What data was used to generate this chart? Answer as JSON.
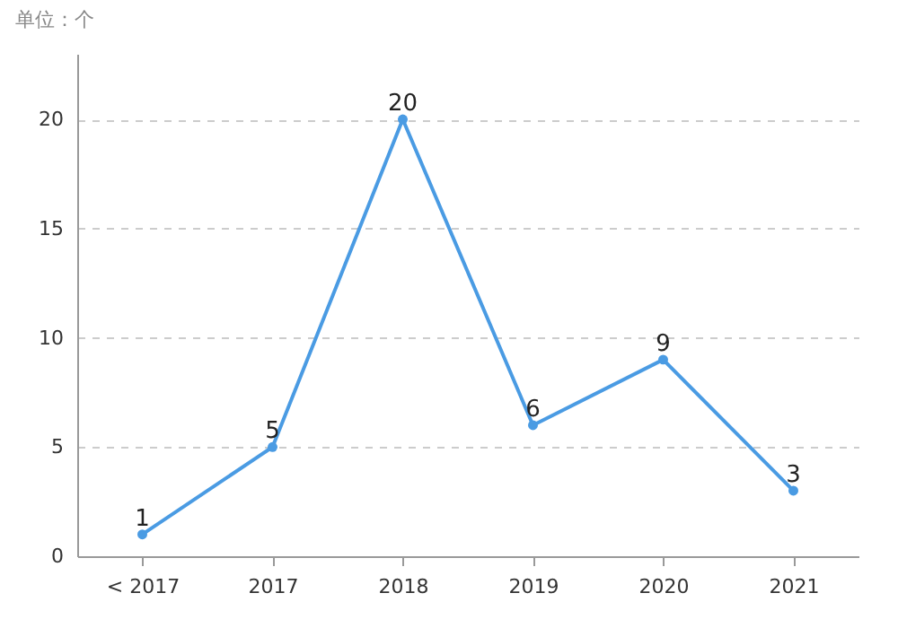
{
  "chart_data": {
    "type": "line",
    "ylabel": "单位：个",
    "categories": [
      "< 2017",
      "2017",
      "2018",
      "2019",
      "2020",
      "2021"
    ],
    "series": [
      {
        "color": "#4a9be3",
        "values": [
          1,
          5,
          20,
          6,
          9,
          3
        ]
      }
    ],
    "ylim": [
      0,
      23
    ],
    "yticks": [
      0,
      5,
      10,
      15,
      20
    ],
    "grid": "y",
    "marker": "circle",
    "line_style": "solid",
    "data_labels": true,
    "legend": false
  }
}
